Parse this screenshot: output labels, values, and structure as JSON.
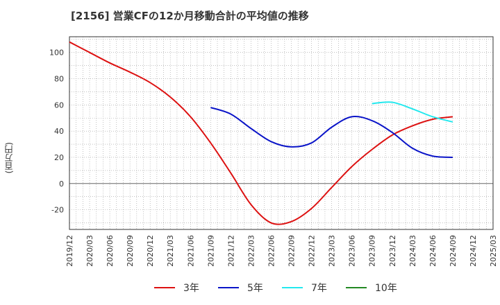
{
  "title": "[2156]  営業CFの12か月移動合計の平均値の推移",
  "ylabel": "(百万円)",
  "chart_data": {
    "type": "line",
    "title": "[2156]  営業CFの12か月移動合計の平均値の推移",
    "ylabel": "(百万円)",
    "ylim": [
      -35,
      112
    ],
    "yticks": [
      -20,
      0,
      20,
      40,
      60,
      80,
      100
    ],
    "xticks": [
      "2019/12",
      "2020/03",
      "2020/06",
      "2020/09",
      "2020/12",
      "2021/03",
      "2021/06",
      "2021/09",
      "2021/12",
      "2022/03",
      "2022/06",
      "2022/09",
      "2022/12",
      "2023/03",
      "2023/06",
      "2023/09",
      "2023/12",
      "2024/03",
      "2024/06",
      "2024/09",
      "2024/12",
      "2025/03"
    ],
    "grid": true,
    "legend_position": "bottom",
    "series": [
      {
        "name": "3年",
        "color": "#dd1111",
        "x": [
          "2019/12",
          "2020/03",
          "2020/06",
          "2020/09",
          "2020/12",
          "2021/03",
          "2021/06",
          "2021/09",
          "2021/12",
          "2022/03",
          "2022/06",
          "2022/09",
          "2022/12",
          "2023/03",
          "2023/06",
          "2023/09",
          "2023/12",
          "2024/03",
          "2024/06",
          "2024/09"
        ],
        "values": [
          108,
          100,
          92,
          85,
          77,
          66,
          51,
          31,
          8,
          -16,
          -30,
          -29,
          -19,
          -3,
          13,
          26,
          37,
          44,
          49,
          51
        ]
      },
      {
        "name": "5年",
        "color": "#0a14c8",
        "x": [
          "2021/09",
          "2021/12",
          "2022/03",
          "2022/06",
          "2022/09",
          "2022/12",
          "2023/03",
          "2023/06",
          "2023/09",
          "2023/12",
          "2024/03",
          "2024/06",
          "2024/09"
        ],
        "values": [
          58,
          53,
          42,
          32,
          28,
          31,
          43,
          51,
          48,
          39,
          27,
          21,
          20
        ]
      },
      {
        "name": "7年",
        "color": "#22e8ee",
        "x": [
          "2023/09",
          "2023/12",
          "2024/03",
          "2024/06",
          "2024/09"
        ],
        "values": [
          61,
          62,
          57,
          51,
          47
        ]
      },
      {
        "name": "10年",
        "color": "#228822",
        "x": [],
        "values": []
      }
    ]
  }
}
